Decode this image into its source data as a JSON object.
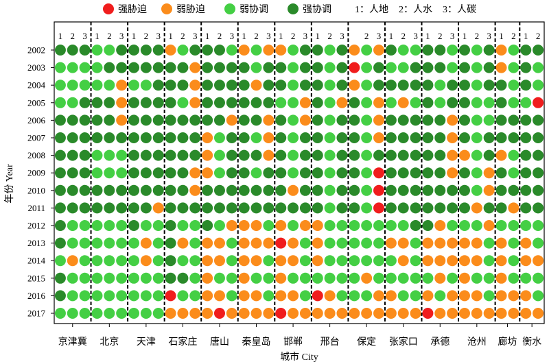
{
  "chart_data": {
    "type": "heatmap",
    "legend_position": "top",
    "legend": [
      {
        "label": "强胁迫",
        "color": "#f01d1d"
      },
      {
        "label": "弱胁迫",
        "color": "#fb8c1b"
      },
      {
        "label": "弱协调",
        "color": "#44cf44"
      },
      {
        "label": "强协调",
        "color": "#2a8a2a"
      }
    ],
    "index_notes": [
      "1：人地",
      "2：人水",
      "3：人碳"
    ],
    "xlabel": "城市 City",
    "ylabel": "年份 Year",
    "years": [
      "2002",
      "2003",
      "2004",
      "2005",
      "2006",
      "2007",
      "2008",
      "2009",
      "2010",
      "2011",
      "2012",
      "2013",
      "2014",
      "2015",
      "2016",
      "2017"
    ],
    "cities": [
      {
        "name": "京津冀",
        "columns": [
          "1",
          "2",
          "3"
        ]
      },
      {
        "name": "北京",
        "columns": [
          "1",
          "2",
          "3"
        ]
      },
      {
        "name": "天津",
        "columns": [
          "1",
          "2",
          "3"
        ]
      },
      {
        "name": "石家庄",
        "columns": [
          "1",
          "2",
          "3"
        ]
      },
      {
        "name": "唐山",
        "columns": [
          "1",
          "2",
          "3"
        ]
      },
      {
        "name": "秦皇岛",
        "columns": [
          "1",
          "2",
          "3"
        ]
      },
      {
        "name": "邯郸",
        "columns": [
          "1",
          "2",
          "3"
        ]
      },
      {
        "name": "邢台",
        "columns": [
          "1",
          "2",
          "3"
        ]
      },
      {
        "name": "保定",
        "columns": [
          "",
          "2",
          "3"
        ]
      },
      {
        "name": "张家口",
        "columns": [
          "1",
          "2",
          "3"
        ]
      },
      {
        "name": "承德",
        "columns": [
          "1",
          "2",
          "3"
        ]
      },
      {
        "name": "沧州",
        "columns": [
          "1",
          "2",
          "3"
        ]
      },
      {
        "name": "廊坊",
        "columns": [
          "1",
          "2"
        ]
      },
      {
        "name": "衡水",
        "columns": [
          "1",
          "2"
        ]
      }
    ],
    "values": [
      [
        [
          3,
          3,
          3
        ],
        [
          2,
          2,
          3
        ],
        [
          3,
          3,
          3
        ],
        [
          1,
          2,
          3
        ],
        [
          3,
          3,
          2
        ],
        [
          1,
          2,
          1
        ],
        [
          1,
          2,
          3
        ],
        [
          3,
          2,
          3
        ],
        [
          1,
          2,
          1
        ],
        [
          3,
          2,
          2
        ],
        [
          3,
          3,
          2
        ],
        [
          3,
          2,
          3
        ],
        [
          1,
          2
        ],
        [
          3,
          3
        ]
      ],
      [
        [
          2,
          2,
          2
        ],
        [
          2,
          3,
          3
        ],
        [
          3,
          3,
          3
        ],
        [
          3,
          3,
          1
        ],
        [
          3,
          3,
          3
        ],
        [
          3,
          2,
          3
        ],
        [
          3,
          2,
          3
        ],
        [
          3,
          2,
          3
        ],
        [
          0,
          2,
          3
        ],
        [
          2,
          2,
          3
        ],
        [
          3,
          3,
          2
        ],
        [
          3,
          2,
          3
        ],
        [
          1,
          2
        ],
        [
          3,
          2
        ]
      ],
      [
        [
          2,
          2,
          2
        ],
        [
          2,
          2,
          1
        ],
        [
          2,
          2,
          3
        ],
        [
          3,
          3,
          1
        ],
        [
          3,
          3,
          3
        ],
        [
          3,
          1,
          3
        ],
        [
          3,
          2,
          3
        ],
        [
          3,
          2,
          3
        ],
        [
          1,
          2,
          3
        ],
        [
          3,
          3,
          3
        ],
        [
          3,
          2,
          3
        ],
        [
          3,
          2,
          3
        ],
        [
          3,
          2
        ],
        [
          3,
          2
        ]
      ],
      [
        [
          2,
          2,
          3
        ],
        [
          3,
          3,
          1
        ],
        [
          3,
          3,
          3
        ],
        [
          3,
          2,
          1
        ],
        [
          3,
          3,
          3
        ],
        [
          3,
          3,
          3
        ],
        [
          2,
          2,
          1
        ],
        [
          3,
          2,
          1
        ],
        [
          3,
          2,
          1
        ],
        [
          2,
          1,
          2
        ],
        [
          3,
          2,
          3
        ],
        [
          3,
          2,
          2
        ],
        [
          3,
          2
        ],
        [
          2,
          0
        ]
      ],
      [
        [
          3,
          3,
          3
        ],
        [
          3,
          3,
          1
        ],
        [
          3,
          3,
          3
        ],
        [
          3,
          3,
          3
        ],
        [
          3,
          3,
          1
        ],
        [
          3,
          3,
          1
        ],
        [
          3,
          2,
          1
        ],
        [
          3,
          2,
          3
        ],
        [
          3,
          2,
          1
        ],
        [
          3,
          3,
          3
        ],
        [
          3,
          3,
          1
        ],
        [
          3,
          2,
          2
        ],
        [
          3,
          3
        ],
        [
          3,
          3
        ]
      ],
      [
        [
          3,
          3,
          3
        ],
        [
          3,
          3,
          3
        ],
        [
          3,
          3,
          3
        ],
        [
          3,
          3,
          3
        ],
        [
          1,
          2,
          3
        ],
        [
          3,
          2,
          1
        ],
        [
          3,
          2,
          3
        ],
        [
          3,
          2,
          3
        ],
        [
          3,
          2,
          1
        ],
        [
          3,
          3,
          3
        ],
        [
          3,
          3,
          1
        ],
        [
          3,
          2,
          3
        ],
        [
          3,
          3
        ],
        [
          3,
          3
        ]
      ],
      [
        [
          3,
          3,
          3
        ],
        [
          2,
          2,
          2
        ],
        [
          3,
          3,
          3
        ],
        [
          3,
          3,
          3
        ],
        [
          1,
          2,
          3
        ],
        [
          3,
          3,
          1
        ],
        [
          3,
          2,
          3
        ],
        [
          3,
          2,
          3
        ],
        [
          3,
          2,
          3
        ],
        [
          3,
          3,
          3
        ],
        [
          3,
          3,
          1
        ],
        [
          1,
          2,
          3
        ],
        [
          1,
          2
        ],
        [
          3,
          3
        ]
      ],
      [
        [
          3,
          3,
          3
        ],
        [
          2,
          2,
          2
        ],
        [
          3,
          3,
          3
        ],
        [
          3,
          3,
          1
        ],
        [
          1,
          2,
          3
        ],
        [
          3,
          2,
          3
        ],
        [
          3,
          2,
          3
        ],
        [
          3,
          2,
          3
        ],
        [
          3,
          2,
          0
        ],
        [
          3,
          3,
          3
        ],
        [
          3,
          3,
          1
        ],
        [
          3,
          2,
          1
        ],
        [
          3,
          2
        ],
        [
          3,
          3
        ]
      ],
      [
        [
          3,
          3,
          3
        ],
        [
          3,
          3,
          3
        ],
        [
          3,
          3,
          3
        ],
        [
          3,
          3,
          1
        ],
        [
          3,
          3,
          3
        ],
        [
          3,
          3,
          3
        ],
        [
          3,
          1,
          3
        ],
        [
          3,
          2,
          3
        ],
        [
          3,
          2,
          0
        ],
        [
          3,
          3,
          3
        ],
        [
          3,
          3,
          3
        ],
        [
          3,
          2,
          1
        ],
        [
          3,
          3
        ],
        [
          3,
          3
        ]
      ],
      [
        [
          3,
          3,
          3
        ],
        [
          3,
          3,
          3
        ],
        [
          3,
          3,
          1
        ],
        [
          3,
          3,
          3
        ],
        [
          3,
          3,
          3
        ],
        [
          3,
          3,
          3
        ],
        [
          3,
          3,
          3
        ],
        [
          3,
          2,
          3
        ],
        [
          3,
          2,
          0
        ],
        [
          3,
          3,
          3
        ],
        [
          3,
          3,
          3
        ],
        [
          3,
          1,
          3
        ],
        [
          3,
          1
        ],
        [
          3,
          3
        ]
      ],
      [
        [
          3,
          2,
          2
        ],
        [
          2,
          2,
          2
        ],
        [
          3,
          2,
          2
        ],
        [
          3,
          2,
          2
        ],
        [
          3,
          2,
          1
        ],
        [
          1,
          1,
          2
        ],
        [
          1,
          2,
          1
        ],
        [
          1,
          2,
          2
        ],
        [
          2,
          2,
          2
        ],
        [
          2,
          2,
          3
        ],
        [
          3,
          1,
          2
        ],
        [
          2,
          2,
          1
        ],
        [
          2,
          2
        ],
        [
          2,
          2
        ]
      ],
      [
        [
          3,
          2,
          2
        ],
        [
          2,
          2,
          2
        ],
        [
          2,
          1,
          2
        ],
        [
          3,
          1,
          2
        ],
        [
          1,
          1,
          2
        ],
        [
          1,
          1,
          1
        ],
        [
          0,
          1,
          2
        ],
        [
          1,
          2,
          2
        ],
        [
          2,
          2,
          2
        ],
        [
          1,
          1,
          2
        ],
        [
          1,
          1,
          1
        ],
        [
          1,
          1,
          2
        ],
        [
          1,
          2
        ],
        [
          1,
          2
        ]
      ],
      [
        [
          2,
          1,
          2
        ],
        [
          2,
          2,
          2
        ],
        [
          2,
          1,
          2
        ],
        [
          3,
          2,
          2
        ],
        [
          1,
          1,
          2
        ],
        [
          1,
          1,
          2
        ],
        [
          1,
          1,
          2
        ],
        [
          1,
          2,
          2
        ],
        [
          2,
          2,
          2
        ],
        [
          2,
          1,
          2
        ],
        [
          1,
          1,
          1
        ],
        [
          1,
          1,
          2
        ],
        [
          1,
          2
        ],
        [
          1,
          1
        ]
      ],
      [
        [
          3,
          2,
          2
        ],
        [
          2,
          2,
          2
        ],
        [
          2,
          2,
          2
        ],
        [
          3,
          3,
          2
        ],
        [
          1,
          2,
          2
        ],
        [
          1,
          2,
          2
        ],
        [
          1,
          2,
          2
        ],
        [
          2,
          2,
          2
        ],
        [
          2,
          1,
          2
        ],
        [
          2,
          2,
          2
        ],
        [
          2,
          1,
          2
        ],
        [
          1,
          2,
          2
        ],
        [
          1,
          2
        ],
        [
          2,
          2
        ]
      ],
      [
        [
          3,
          2,
          2
        ],
        [
          2,
          2,
          2
        ],
        [
          2,
          2,
          2
        ],
        [
          0,
          2,
          2
        ],
        [
          1,
          1,
          2
        ],
        [
          1,
          1,
          2
        ],
        [
          1,
          1,
          2
        ],
        [
          0,
          1,
          2
        ],
        [
          2,
          2,
          1
        ],
        [
          1,
          2,
          2
        ],
        [
          1,
          2,
          1
        ],
        [
          1,
          1,
          2
        ],
        [
          1,
          1
        ],
        [
          1,
          2
        ]
      ],
      [
        [
          2,
          2,
          2
        ],
        [
          2,
          2,
          2
        ],
        [
          2,
          2,
          2
        ],
        [
          1,
          1,
          1
        ],
        [
          1,
          0,
          1
        ],
        [
          1,
          1,
          1
        ],
        [
          0,
          1,
          1
        ],
        [
          1,
          1,
          1
        ],
        [
          1,
          1,
          1
        ],
        [
          1,
          1,
          1
        ],
        [
          0,
          1,
          1
        ],
        [
          1,
          1,
          1
        ],
        [
          1,
          1
        ],
        [
          1,
          1
        ]
      ]
    ]
  }
}
